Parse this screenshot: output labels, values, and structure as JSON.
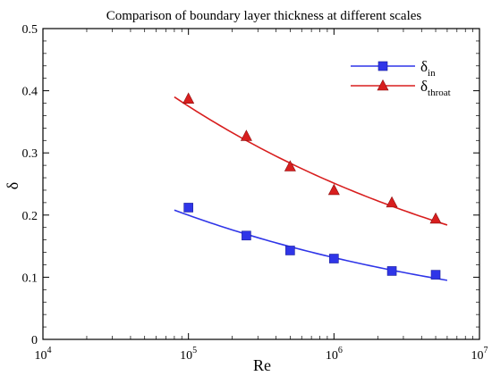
{
  "chart_data": {
    "type": "scatter",
    "title": "Comparison of boundary layer thickness at different scales",
    "xlabel": "Re",
    "ylabel": "δ",
    "xscale": "log",
    "xlim": [
      10000,
      10000000
    ],
    "ylim": [
      0,
      0.5
    ],
    "grid": false,
    "legend_position": "top-right",
    "x_ticks": [
      {
        "value": 10000,
        "base": "10",
        "exp": "4"
      },
      {
        "value": 100000,
        "base": "10",
        "exp": "5"
      },
      {
        "value": 1000000,
        "base": "10",
        "exp": "6"
      },
      {
        "value": 10000000,
        "base": "10",
        "exp": "7"
      }
    ],
    "y_ticks": [
      "0",
      "0.1",
      "0.2",
      "0.3",
      "0.4",
      "0.5"
    ],
    "series": [
      {
        "name": "δ",
        "name_sub": "in",
        "color": "#2f35e8",
        "marker": "square",
        "x": [
          100000,
          250000,
          500000,
          1000000,
          2500000,
          5000000
        ],
        "y": [
          0.212,
          0.167,
          0.143,
          0.13,
          0.11,
          0.104
        ],
        "fit_x": [
          80000,
          6000000
        ],
        "fit_y": [
          0.208,
          0.095
        ]
      },
      {
        "name": "δ",
        "name_sub": "throat",
        "color": "#d81e1e",
        "marker": "triangle",
        "x": [
          100000,
          250000,
          500000,
          1000000,
          2500000,
          5000000
        ],
        "y": [
          0.387,
          0.327,
          0.278,
          0.24,
          0.22,
          0.194
        ],
        "fit_x": [
          80000,
          6000000
        ],
        "fit_y": [
          0.39,
          0.184
        ]
      }
    ]
  }
}
